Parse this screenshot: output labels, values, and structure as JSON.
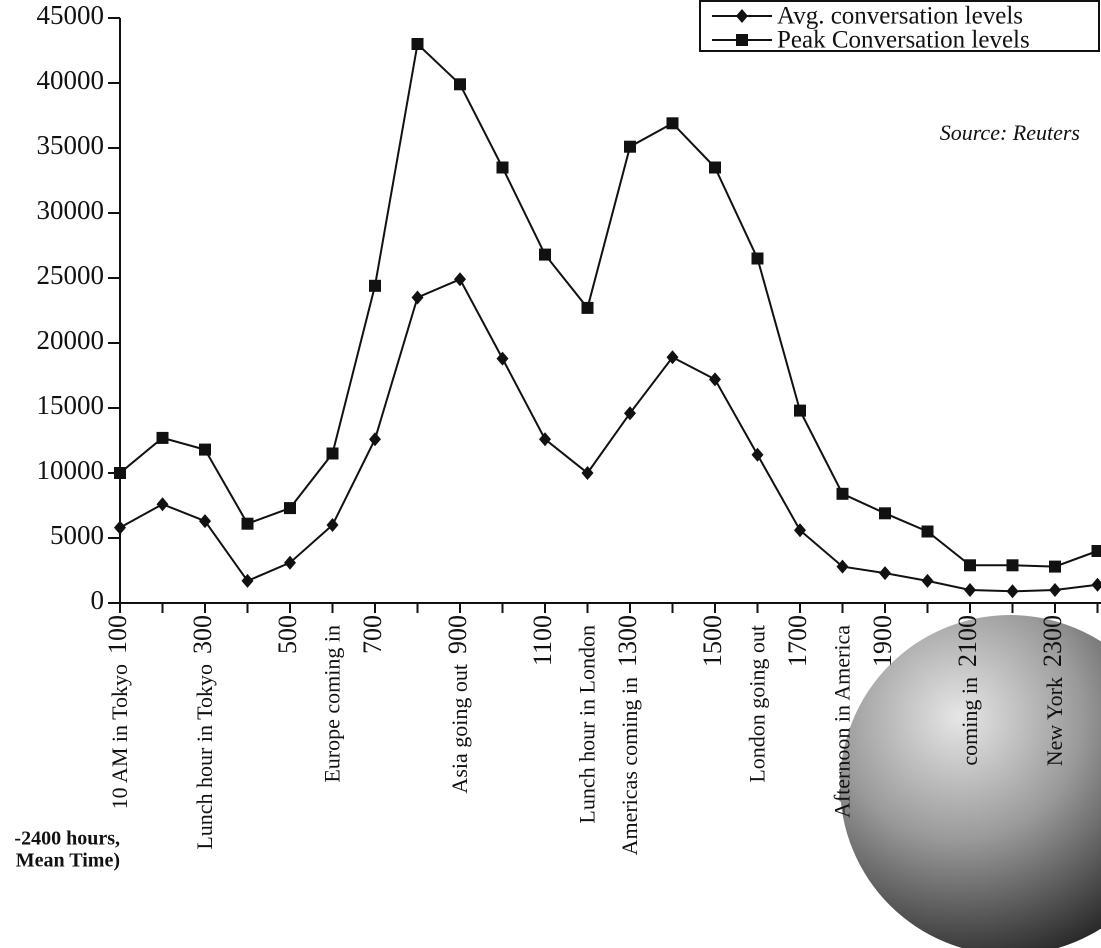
{
  "chart_data": {
    "type": "line",
    "categories": [
      "100",
      null,
      "300",
      null,
      "500",
      null,
      "700",
      null,
      "900",
      null,
      "1100",
      null,
      "1300",
      null,
      "1500",
      null,
      "1700",
      null,
      "1900",
      null,
      "2100",
      null,
      "2300",
      null
    ],
    "series": [
      {
        "name": "Avg. conversation levels",
        "color": "#111111",
        "marker": "diamond",
        "values": [
          5800,
          7600,
          6300,
          1700,
          3100,
          6000,
          12600,
          23500,
          24900,
          18800,
          12600,
          10000,
          14600,
          18900,
          17200,
          11400,
          5600,
          2800,
          2300,
          1700,
          1000,
          900,
          1000,
          1400
        ]
      },
      {
        "name": "Peak Conversation levels",
        "color": "#111111",
        "marker": "square",
        "values": [
          10000,
          12700,
          11800,
          6100,
          7300,
          11500,
          24400,
          43000,
          39900,
          33500,
          26800,
          22700,
          35100,
          36900,
          33500,
          26500,
          14800,
          8400,
          6900,
          5500,
          2900,
          2900,
          2800,
          4000
        ]
      }
    ],
    "ylim": [
      0,
      45000
    ],
    "yticks": [
      0,
      5000,
      10000,
      15000,
      20000,
      25000,
      30000,
      35000,
      40000,
      45000
    ],
    "annotations": [
      {
        "text": "10 AM in Tokyo",
        "index": 0
      },
      {
        "text": "Lunch hour in Tokyo",
        "index": 2
      },
      {
        "text": "Europe coming in",
        "index": 5
      },
      {
        "text": "Asia going out",
        "index": 8
      },
      {
        "text": "Lunch hour in London",
        "index": 11
      },
      {
        "text": "Americas coming in",
        "index": 12
      },
      {
        "text": "London going out",
        "index": 15
      },
      {
        "text": "Afternoon in America",
        "index": 17
      },
      {
        "text": "coming in",
        "index": 20
      },
      {
        "text": "New York",
        "index": 22
      }
    ],
    "source": "Source: Reuters",
    "footnote": [
      "-2400 hours,",
      "Mean Time)"
    ],
    "legend": "top-right"
  }
}
